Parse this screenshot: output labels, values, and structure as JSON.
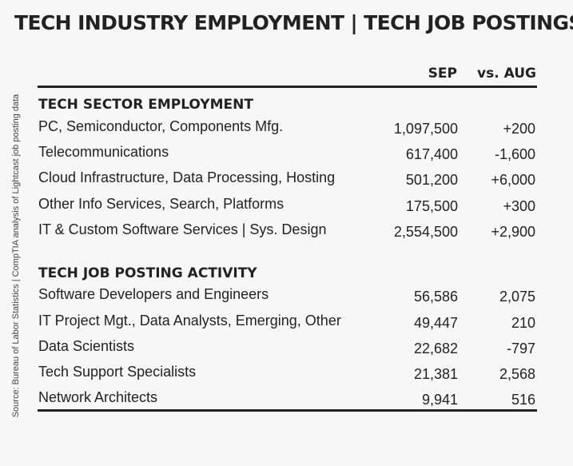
{
  "title": "TECH INDUSTRY EMPLOYMENT | TECH JOB POSTINGS",
  "source": "Source: Bureau of Labor Statistics | CompTIA analysis of Lightcast job posting data",
  "columns": {
    "sep": "SEP",
    "aug": "vs. AUG"
  },
  "employment": {
    "heading": "TECH SECTOR EMPLOYMENT",
    "rows": [
      {
        "label": "PC, Semiconductor, Components Mfg.",
        "sep": "1,097,500",
        "aug": "+200"
      },
      {
        "label": "Telecommunications",
        "sep": "617,400",
        "aug": "-1,600"
      },
      {
        "label": "Cloud Infrastructure, Data Processing, Hosting",
        "sep": "501,200",
        "aug": "+6,000"
      },
      {
        "label": "Other Info Services, Search, Platforms",
        "sep": "175,500",
        "aug": "+300"
      },
      {
        "label": "IT & Custom Software Services | Sys. Design",
        "sep": "2,554,500",
        "aug": "+2,900"
      }
    ]
  },
  "postings": {
    "heading": "TECH JOB POSTING ACTIVITY",
    "rows": [
      {
        "label": "Software Developers and Engineers",
        "sep": "56,586",
        "aug": "2,075"
      },
      {
        "label": "IT Project Mgt., Data Analysts, Emerging, Other",
        "sep": "49,447",
        "aug": "210"
      },
      {
        "label": "Data Scientists",
        "sep": "22,682",
        "aug": "-797"
      },
      {
        "label": "Tech Support Specialists",
        "sep": "21,381",
        "aug": "2,568"
      },
      {
        "label": "Network Architects",
        "sep": "9,941",
        "aug": "516"
      }
    ]
  }
}
